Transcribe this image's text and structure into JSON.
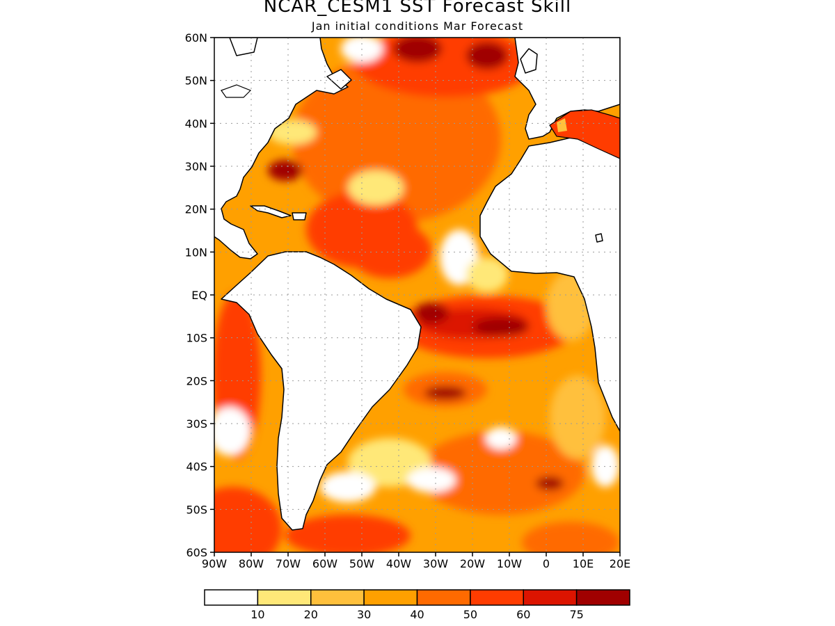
{
  "title": "NCAR_CESM1 SST Forecast Skill",
  "subtitle": "Jan initial conditions  Mar Forecast",
  "map": {
    "region": "Atlantic Ocean",
    "lon_range": [
      -90,
      20
    ],
    "lat_range": [
      -60,
      60
    ],
    "grid": "dotted"
  },
  "axes": {
    "lat_labels": [
      "60N",
      "50N",
      "40N",
      "30N",
      "20N",
      "10N",
      "EQ",
      "10S",
      "20S",
      "30S",
      "40S",
      "50S",
      "60S"
    ],
    "lon_labels": [
      "90W",
      "80W",
      "70W",
      "60W",
      "50W",
      "40W",
      "30W",
      "20W",
      "10W",
      "0",
      "10E",
      "20E"
    ]
  },
  "colorbar": {
    "colors": [
      "#ffffff",
      "#ffe878",
      "#ffc03c",
      "#ffa000",
      "#ff6a00",
      "#ff3c00",
      "#dc1400",
      "#a00000"
    ],
    "tick_labels": [
      "10",
      "20",
      "30",
      "40",
      "50",
      "60",
      "75"
    ]
  }
}
